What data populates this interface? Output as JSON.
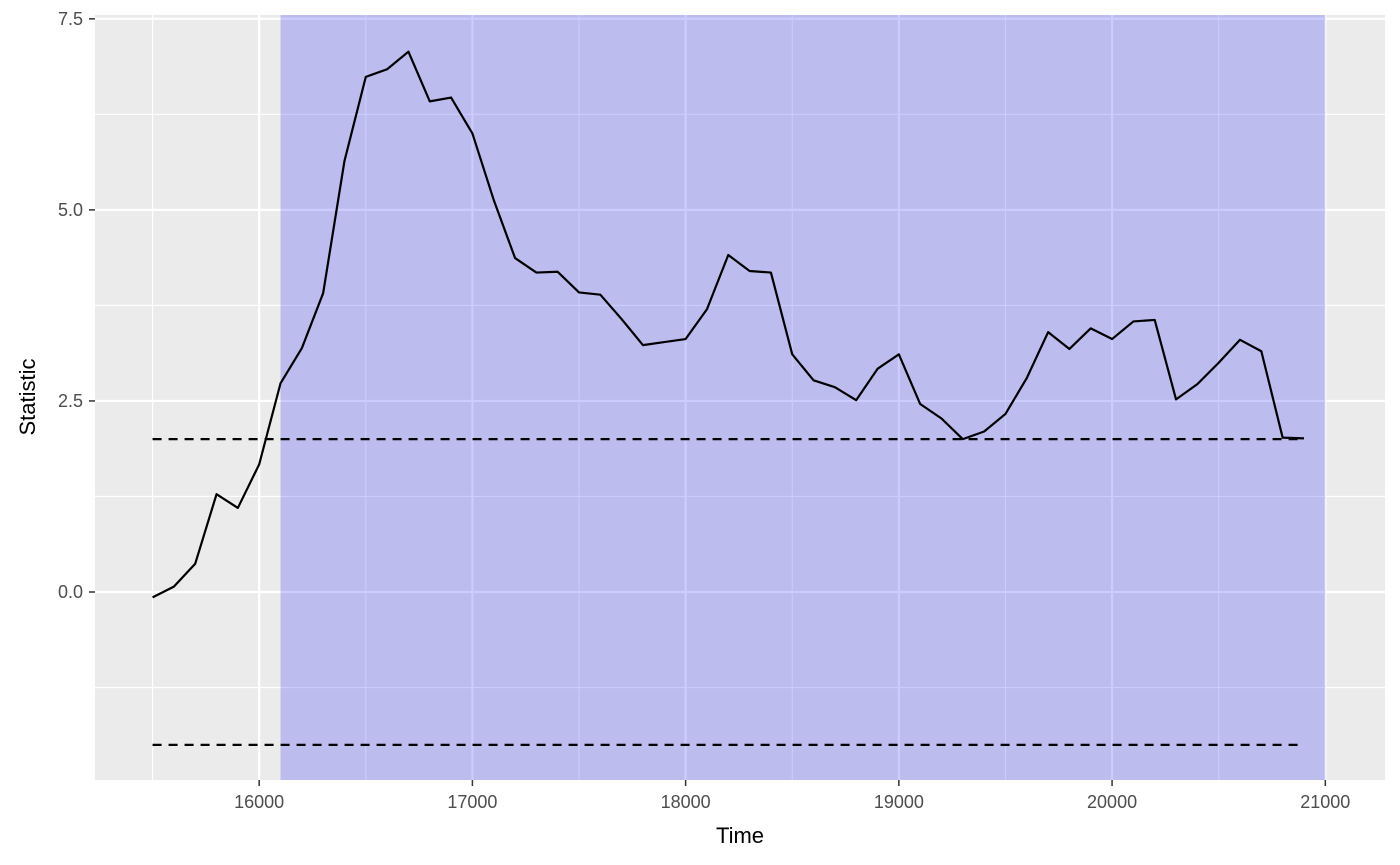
{
  "chart_data": {
    "type": "line",
    "title": "",
    "xlabel": "Time",
    "ylabel": "Statistic",
    "xlim": [
      15230,
      21280
    ],
    "ylim": [
      -2.46,
      7.55
    ],
    "x_major_ticks": [
      16000,
      17000,
      18000,
      19000,
      20000,
      21000
    ],
    "x_tick_labels": [
      "16000",
      "17000",
      "18000",
      "19000",
      "20000",
      "21000"
    ],
    "y_major_ticks": [
      0.0,
      2.5,
      5.0,
      7.5
    ],
    "y_tick_labels": [
      "0.0",
      "2.5",
      "5.0",
      "7.5"
    ],
    "y_minor_ticks": [
      -1.25,
      1.25,
      3.75,
      6.25
    ],
    "grid": true,
    "panel_background": "#ebebeb",
    "line_color": "#000000",
    "shaded_region": {
      "x_start": 16100,
      "x_end": 21000,
      "color": "#0000ff",
      "opacity": 0.2
    },
    "threshold_lines": [
      {
        "y": 2.0,
        "style": "dashed",
        "x_start": 15500,
        "x_end": 20900
      },
      {
        "y": -2.0,
        "style": "dashed",
        "x_start": 15500,
        "x_end": 20900
      }
    ],
    "series": [
      {
        "x": [
          15500,
          15600,
          15700,
          15800,
          15900,
          16000,
          16100,
          16200,
          16300,
          16400,
          16500,
          16600,
          16700,
          16800,
          16900,
          17000,
          17100,
          17200,
          17300,
          17400,
          17500,
          17600,
          17700,
          17800,
          17900,
          18000,
          18100,
          18200,
          18300,
          18400,
          18500,
          18600,
          18700,
          18800,
          18900,
          19000,
          19100,
          19200,
          19300,
          19400,
          19500,
          19600,
          19700,
          19800,
          19900,
          20000,
          20100,
          20200,
          20300,
          20400,
          20500,
          20600,
          20700,
          20800,
          20900
        ],
        "y": [
          -0.07,
          0.07,
          0.37,
          1.28,
          1.1,
          1.67,
          2.73,
          3.19,
          3.91,
          5.64,
          6.74,
          6.84,
          7.07,
          6.42,
          6.47,
          6.0,
          5.13,
          4.37,
          4.18,
          4.19,
          3.92,
          3.89,
          3.57,
          3.23,
          3.27,
          3.31,
          3.7,
          4.41,
          4.2,
          4.18,
          3.11,
          2.77,
          2.68,
          2.51,
          2.92,
          3.11,
          2.46,
          2.27,
          2.0,
          2.1,
          2.33,
          2.8,
          3.4,
          3.18,
          3.45,
          3.31,
          3.54,
          3.56,
          2.52,
          2.72,
          3.0,
          3.3,
          3.15,
          2.02,
          2.01
        ]
      }
    ]
  }
}
